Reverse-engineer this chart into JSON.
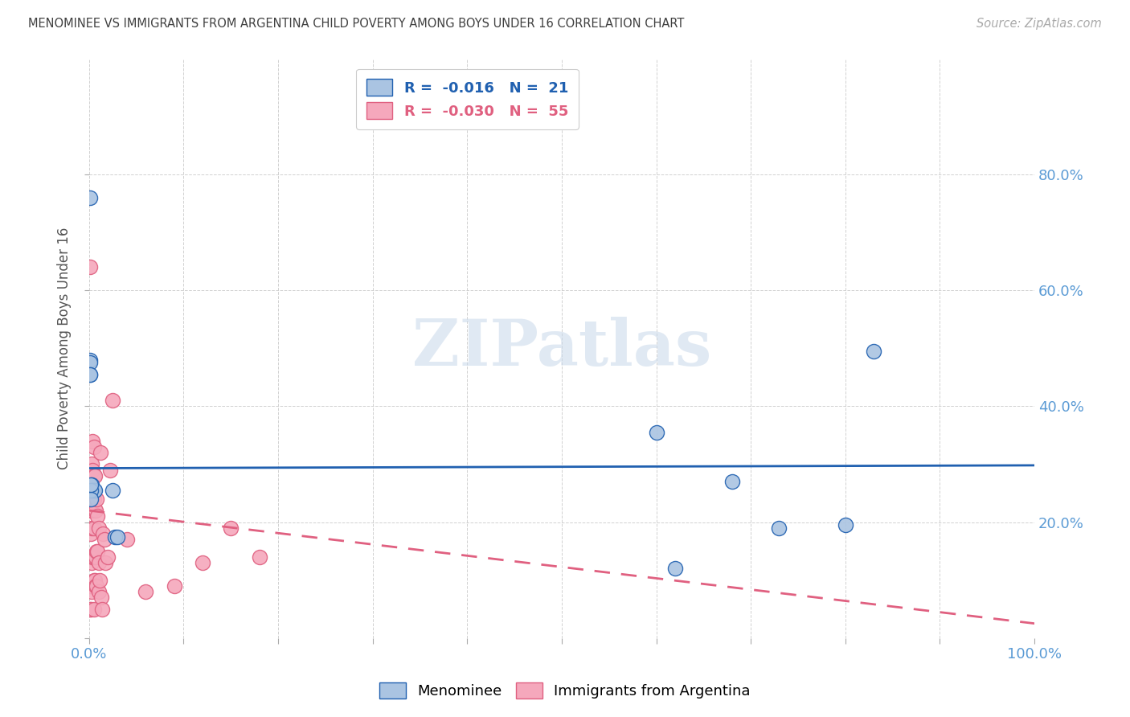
{
  "title": "MENOMINEE VS IMMIGRANTS FROM ARGENTINA CHILD POVERTY AMONG BOYS UNDER 16 CORRELATION CHART",
  "source": "Source: ZipAtlas.com",
  "ylabel": "Child Poverty Among Boys Under 16",
  "legend_labels": [
    "Menominee",
    "Immigrants from Argentina"
  ],
  "menominee_R": "-0.016",
  "menominee_N": "21",
  "argentina_R": "-0.030",
  "argentina_N": "55",
  "menominee_color": "#aac4e2",
  "argentina_color": "#f5a8bc",
  "menominee_line_color": "#2060b0",
  "argentina_line_color": "#e06080",
  "background_color": "#ffffff",
  "grid_color": "#cccccc",
  "title_color": "#404040",
  "axis_label_color": "#5b9bd5",
  "watermark": "ZIPatlas",
  "xlim": [
    0,
    1.0
  ],
  "ylim": [
    0,
    1.0
  ],
  "menominee_x": [
    0.001,
    0.001,
    0.001,
    0.001,
    0.001,
    0.003,
    0.004,
    0.005,
    0.006,
    0.025,
    0.027,
    0.03,
    0.6,
    0.68,
    0.73,
    0.62,
    0.8,
    0.83,
    0.002,
    0.002,
    0.002
  ],
  "menominee_y": [
    0.76,
    0.48,
    0.475,
    0.455,
    0.455,
    0.265,
    0.255,
    0.255,
    0.255,
    0.255,
    0.175,
    0.175,
    0.355,
    0.27,
    0.19,
    0.12,
    0.195,
    0.495,
    0.255,
    0.24,
    0.265
  ],
  "argentina_x": [
    0.001,
    0.001,
    0.001,
    0.001,
    0.002,
    0.002,
    0.002,
    0.002,
    0.002,
    0.003,
    0.003,
    0.003,
    0.003,
    0.003,
    0.004,
    0.004,
    0.004,
    0.004,
    0.005,
    0.005,
    0.005,
    0.005,
    0.005,
    0.005,
    0.005,
    0.006,
    0.006,
    0.006,
    0.007,
    0.007,
    0.007,
    0.008,
    0.008,
    0.008,
    0.009,
    0.009,
    0.01,
    0.01,
    0.01,
    0.011,
    0.012,
    0.013,
    0.014,
    0.015,
    0.016,
    0.017,
    0.02,
    0.022,
    0.025,
    0.04,
    0.06,
    0.09,
    0.12,
    0.15,
    0.18
  ],
  "argentina_y": [
    0.64,
    0.14,
    0.05,
    0.09,
    0.22,
    0.18,
    0.14,
    0.09,
    0.05,
    0.3,
    0.24,
    0.19,
    0.13,
    0.08,
    0.34,
    0.29,
    0.22,
    0.14,
    0.33,
    0.28,
    0.24,
    0.19,
    0.14,
    0.1,
    0.05,
    0.28,
    0.22,
    0.1,
    0.22,
    0.14,
    0.09,
    0.24,
    0.15,
    0.09,
    0.21,
    0.15,
    0.19,
    0.13,
    0.08,
    0.1,
    0.32,
    0.07,
    0.05,
    0.18,
    0.17,
    0.13,
    0.14,
    0.29,
    0.41,
    0.17,
    0.08,
    0.09,
    0.13,
    0.19,
    0.14
  ],
  "men_line_x0": 0.0,
  "men_line_x1": 1.0,
  "men_line_y0": 0.293,
  "men_line_y1": 0.298,
  "arg_line_x0": 0.0,
  "arg_line_x1": 1.0,
  "arg_line_y0": 0.22,
  "arg_line_y1": 0.025
}
